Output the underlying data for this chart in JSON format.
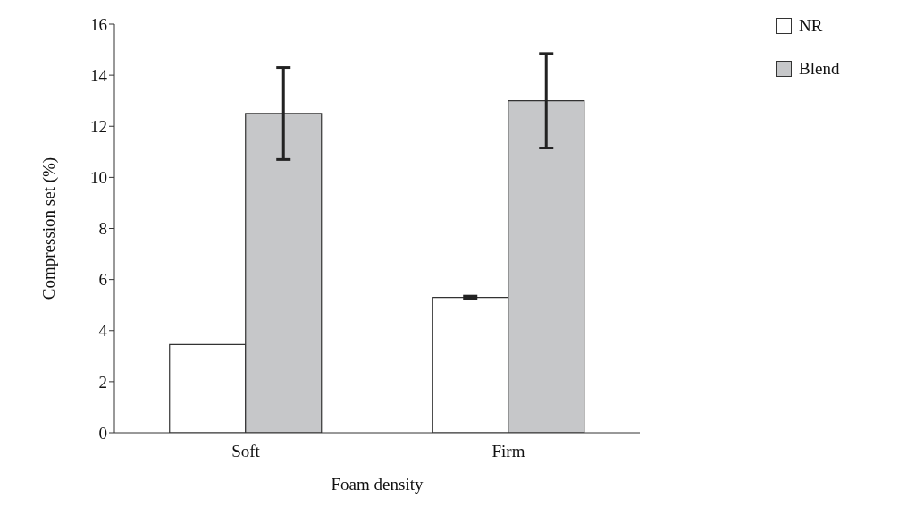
{
  "chart_data": {
    "type": "bar",
    "xlabel": "Foam density",
    "ylabel": "Compression set (%)",
    "categories": [
      "Soft",
      "Firm"
    ],
    "series": [
      {
        "name": "NR",
        "color": "#ffffff",
        "values": [
          3.45,
          5.3
        ],
        "errors": [
          null,
          0.05
        ]
      },
      {
        "name": "Blend",
        "color": "#c6c7c9",
        "values": [
          12.5,
          13.0
        ],
        "errors": [
          1.8,
          1.85
        ]
      }
    ],
    "ylim": [
      0,
      16
    ],
    "yticks": [
      0,
      2,
      4,
      6,
      8,
      10,
      12,
      14,
      16
    ],
    "legend": "top right"
  }
}
